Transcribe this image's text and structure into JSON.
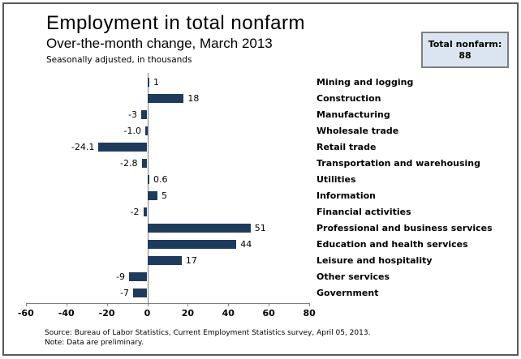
{
  "header": {
    "title": "Employment in total nonfarm",
    "subtitle": "Over-the-month change, March 2013",
    "units_note": "Seasonally adjusted, in thousands"
  },
  "total_box": {
    "label": "Total nonfarm:",
    "value": "88"
  },
  "footer": {
    "source": "Source: Bureau of Labor Statistics, Current Employment Statistics survey, April 05, 2013.",
    "note": "Note: Data are preliminary."
  },
  "colors": {
    "bar": "#1f3b5c",
    "axis": "#808080",
    "box_fill": "#dbe5f1",
    "box_border": "#7f7f7f",
    "frame_border": "#595959"
  },
  "chart_data": {
    "type": "bar",
    "orientation": "horizontal",
    "title": "Employment in total nonfarm",
    "subtitle": "Over-the-month change, March 2013",
    "units_note": "Seasonally adjusted, in thousands",
    "categories": [
      "Mining and logging",
      "Construction",
      "Manufacturing",
      "Wholesale trade",
      "Retail trade",
      "Transportation and warehousing",
      "Utilities",
      "Information",
      "Financial activities",
      "Professional and business services",
      "Education and health services",
      "Leisure and hospitality",
      "Other services",
      "Government"
    ],
    "values": [
      1,
      18,
      -3,
      -1.0,
      -24.1,
      -2.8,
      0.6,
      5,
      -2,
      51,
      44,
      17,
      -9,
      -7
    ],
    "value_labels": [
      "1",
      "18",
      "-3",
      "-1.0",
      "-24.1",
      "-2.8",
      "0.6",
      "5",
      "-2",
      "51",
      "44",
      "17",
      "-9",
      "-7"
    ],
    "xlim": [
      -60,
      80
    ],
    "x_ticks": [
      -60,
      -40,
      -20,
      0,
      20,
      40,
      60,
      80
    ],
    "x_tick_labels": [
      "-60",
      "-40",
      "-20",
      "0",
      "20",
      "40",
      "60",
      "80"
    ],
    "grid": false,
    "legend": false,
    "bar_color": "#1f3b5c",
    "total": {
      "label": "Total nonfarm:",
      "value": 88
    }
  }
}
